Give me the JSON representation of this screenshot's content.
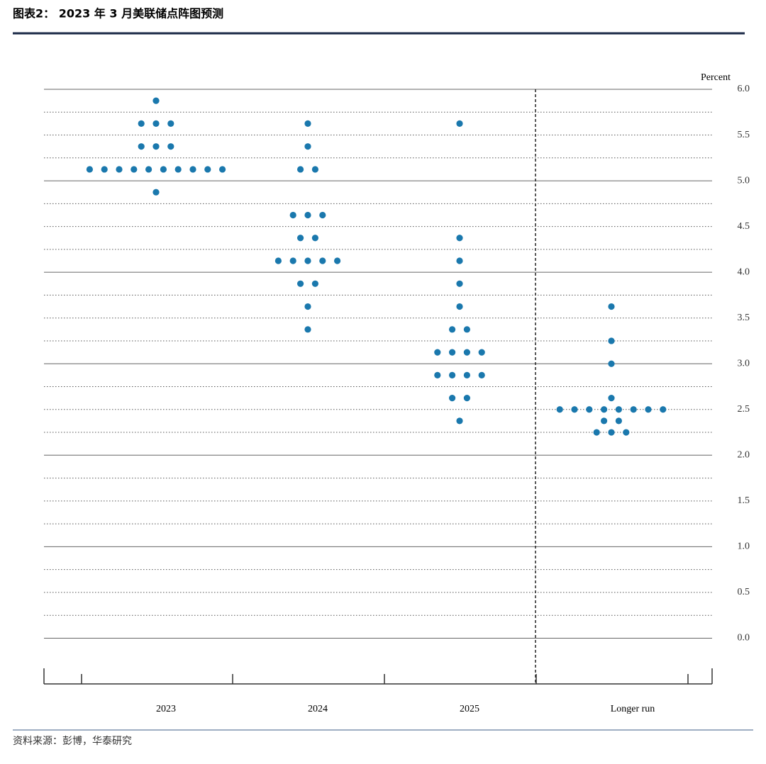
{
  "title": "图表2： 2023 年 3 月美联储点阵图预测",
  "source": "资料来源：彭博，华泰研究",
  "chart_data": {
    "type": "dot",
    "y_label": "Percent",
    "categories": [
      "2023",
      "2024",
      "2025",
      "Longer run"
    ],
    "values": [
      [
        5.875,
        5.625,
        5.625,
        5.625,
        5.375,
        5.375,
        5.375,
        5.125,
        5.125,
        5.125,
        5.125,
        5.125,
        5.125,
        5.125,
        5.125,
        5.125,
        5.125,
        4.875
      ],
      [
        5.625,
        5.375,
        5.125,
        5.125,
        4.625,
        4.625,
        4.625,
        4.375,
        4.375,
        4.125,
        4.125,
        4.125,
        4.125,
        4.125,
        3.875,
        3.875,
        3.625,
        3.375
      ],
      [
        5.625,
        4.375,
        4.125,
        3.875,
        3.625,
        3.375,
        3.375,
        3.125,
        3.125,
        3.125,
        3.125,
        2.875,
        2.875,
        2.875,
        2.875,
        2.625,
        2.625,
        2.375
      ],
      [
        3.625,
        3.25,
        3.0,
        2.625,
        2.5,
        2.5,
        2.5,
        2.5,
        2.5,
        2.5,
        2.5,
        2.5,
        2.375,
        2.375,
        2.25,
        2.25,
        2.25
      ]
    ],
    "color": "#1a78ad",
    "ylim": [
      -0.5,
      6.0
    ],
    "yticks": [
      {
        "value": 0,
        "label": "0.0"
      },
      0.5,
      {
        "value": 1,
        "label": "1.0"
      },
      1.5,
      {
        "value": 2,
        "label": "2.0"
      },
      2.5,
      {
        "value": 3,
        "label": "3.0"
      },
      3.5,
      {
        "value": 4,
        "label": "4.0"
      },
      4.5,
      {
        "value": 5,
        "label": "5.0"
      },
      5.5,
      {
        "value": 6,
        "label": "6.0"
      }
    ],
    "minor_yticks": [
      0.25,
      0.75,
      1.25,
      1.75,
      2.25,
      2.75,
      3.25,
      3.75,
      4.25,
      4.75,
      5.25,
      5.75
    ],
    "grid": true
  }
}
